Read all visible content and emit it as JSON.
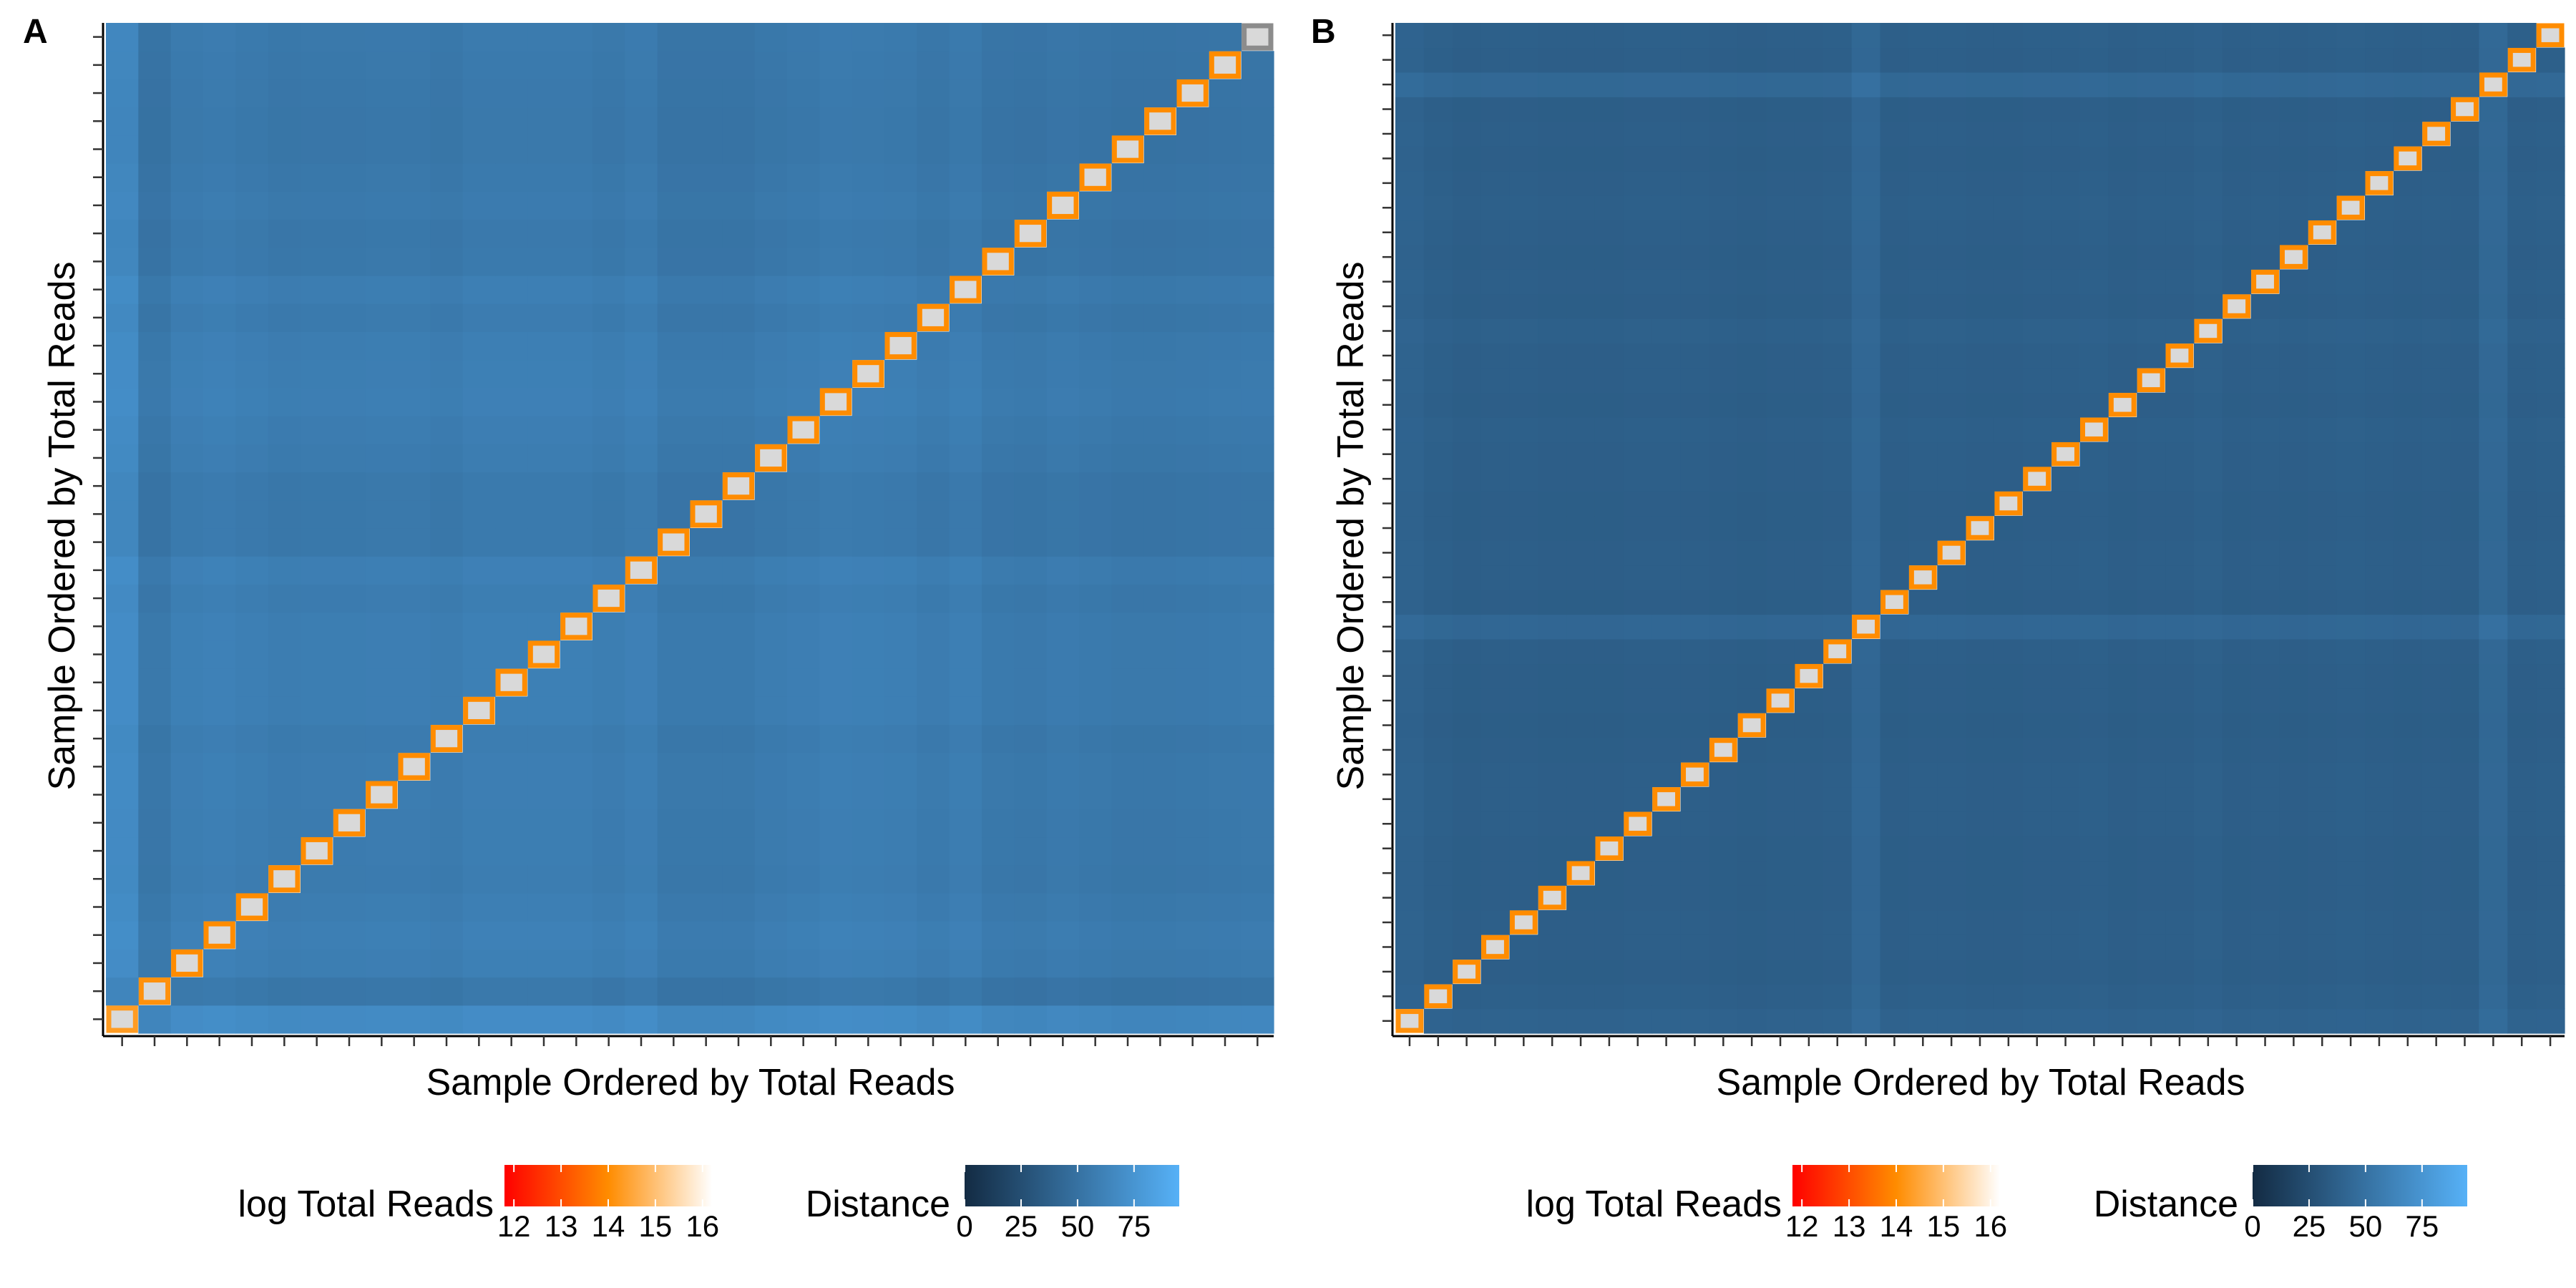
{
  "chart_data": [
    {
      "panel": "A",
      "type": "heatmap",
      "n": 36,
      "xlabel": "Sample Ordered by Total Reads",
      "ylabel": "Sample Ordered by Total Reads",
      "row_means": [
        78,
        50,
        60,
        62,
        59,
        56,
        57,
        57,
        58,
        58,
        56,
        60,
        60,
        60,
        60,
        57,
        61,
        52,
        52,
        52,
        56,
        58,
        61,
        60,
        59,
        55,
        59,
        52,
        51,
        54,
        52,
        50,
        50,
        51,
        52,
        53
      ],
      "distance_legend": {
        "title": "Distance",
        "ticks": [
          "0",
          "25",
          "50",
          "75"
        ],
        "min": 0,
        "max": 95,
        "colors": [
          "#132B43",
          "#56B1F7"
        ]
      },
      "reads_legend": {
        "title": "log Total Reads",
        "ticks": [
          "12",
          "13",
          "14",
          "15",
          "16"
        ],
        "min": 11.8,
        "max": 16.2,
        "colors": [
          "#FF0000",
          "#FF8C00",
          "#FFFFFF"
        ]
      },
      "diagonal": {
        "fill": "#D9D9D9",
        "log_total_reads": [
          14.3,
          14.1,
          14.0,
          14.0,
          14.0,
          14.0,
          14.0,
          14.0,
          14.0,
          14.0,
          14.0,
          14.0,
          14.0,
          14.0,
          14.0,
          14.0,
          14.0,
          14.0,
          14.0,
          14.0,
          14.0,
          14.0,
          14.0,
          14.0,
          14.0,
          14.0,
          14.0,
          14.0,
          14.0,
          14.0,
          14.0,
          14.0,
          14.0,
          14.0,
          14.0,
          null
        ]
      }
    },
    {
      "panel": "B",
      "type": "heatmap",
      "n": 41,
      "xlabel": "Sample Ordered by Total Reads",
      "ylabel": "Sample Ordered by Total Reads",
      "row_means": [
        42,
        38,
        36,
        37,
        37,
        36,
        36,
        36,
        37,
        37,
        37,
        36,
        35,
        36,
        36,
        37,
        48,
        36,
        37,
        37,
        36,
        36,
        37,
        37,
        38,
        36,
        37,
        37,
        39,
        36,
        37,
        36,
        37,
        38,
        37,
        36,
        37,
        36,
        50,
        37,
        38
      ],
      "distance_legend": {
        "title": "Distance",
        "ticks": [
          "0",
          "25",
          "50",
          "75"
        ],
        "min": 0,
        "max": 95,
        "colors": [
          "#132B43",
          "#56B1F7"
        ]
      },
      "reads_legend": {
        "title": "log Total Reads",
        "ticks": [
          "12",
          "13",
          "14",
          "15",
          "16"
        ],
        "min": 11.8,
        "max": 16.2,
        "colors": [
          "#FF0000",
          "#FF8C00",
          "#FFFFFF"
        ]
      },
      "diagonal": {
        "fill": "#D9D9D9",
        "log_total_reads": [
          14.1,
          14.0,
          14.0,
          14.0,
          14.0,
          14.0,
          14.0,
          14.0,
          14.0,
          14.0,
          14.0,
          14.0,
          14.0,
          14.0,
          14.0,
          14.0,
          14.0,
          14.0,
          14.0,
          14.0,
          14.0,
          14.0,
          14.0,
          14.0,
          14.0,
          14.0,
          14.0,
          14.0,
          14.0,
          14.0,
          14.0,
          14.0,
          14.0,
          14.0,
          14.0,
          14.0,
          14.0,
          14.0,
          14.0,
          14.0,
          14.0
        ]
      }
    }
  ]
}
